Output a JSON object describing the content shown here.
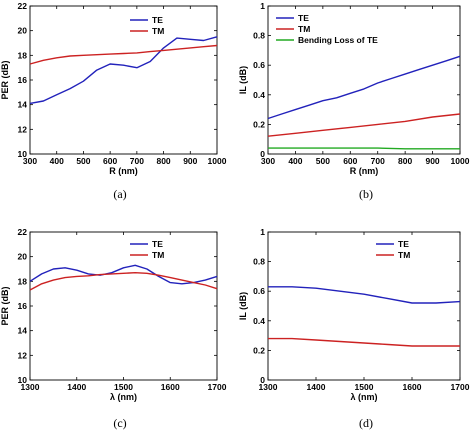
{
  "chart_data": [
    {
      "type": "line",
      "caption": "(a)",
      "xlabel": "R (nm)",
      "ylabel": "PER (dB)",
      "xlim": [
        300,
        1000
      ],
      "ylim": [
        10,
        22
      ],
      "xticks": [
        300,
        400,
        500,
        600,
        700,
        800,
        900,
        1000
      ],
      "yticks": [
        10,
        12,
        14,
        16,
        18,
        20,
        22
      ],
      "legend": "top-right",
      "series": [
        {
          "name": "TE",
          "color": "#2222bb",
          "x": [
            300,
            350,
            400,
            450,
            500,
            550,
            600,
            650,
            700,
            750,
            800,
            850,
            900,
            950,
            1000
          ],
          "y": [
            14.1,
            14.3,
            14.8,
            15.3,
            15.9,
            16.8,
            17.3,
            17.2,
            17.0,
            17.5,
            18.6,
            19.4,
            19.3,
            19.2,
            19.5
          ]
        },
        {
          "name": "TM",
          "color": "#cc2222",
          "x": [
            300,
            350,
            400,
            450,
            500,
            550,
            600,
            650,
            700,
            750,
            800,
            850,
            900,
            950,
            1000
          ],
          "y": [
            17.3,
            17.6,
            17.8,
            17.95,
            18.0,
            18.05,
            18.1,
            18.15,
            18.2,
            18.3,
            18.4,
            18.5,
            18.6,
            18.7,
            18.8
          ]
        }
      ]
    },
    {
      "type": "line",
      "caption": "(b)",
      "xlabel": "R (nm)",
      "ylabel": "IL (dB)",
      "xlim": [
        300,
        1000
      ],
      "ylim": [
        0,
        1
      ],
      "xticks": [
        300,
        400,
        500,
        600,
        700,
        800,
        900,
        1000
      ],
      "yticks": [
        0,
        0.2,
        0.4,
        0.6,
        0.8,
        1
      ],
      "legend": "top-left",
      "series": [
        {
          "name": "TE",
          "color": "#2222bb",
          "x": [
            300,
            350,
            400,
            450,
            500,
            550,
            600,
            650,
            700,
            750,
            800,
            850,
            900,
            950,
            1000
          ],
          "y": [
            0.24,
            0.27,
            0.3,
            0.33,
            0.36,
            0.38,
            0.41,
            0.44,
            0.48,
            0.51,
            0.54,
            0.57,
            0.6,
            0.63,
            0.66
          ]
        },
        {
          "name": "TM",
          "color": "#cc2222",
          "x": [
            300,
            400,
            500,
            600,
            700,
            800,
            900,
            1000
          ],
          "y": [
            0.12,
            0.14,
            0.16,
            0.18,
            0.2,
            0.22,
            0.25,
            0.27
          ]
        },
        {
          "name": "Bending Loss of TE",
          "color": "#22aa22",
          "x": [
            300,
            400,
            500,
            600,
            700,
            800,
            900,
            1000
          ],
          "y": [
            0.04,
            0.04,
            0.04,
            0.04,
            0.04,
            0.035,
            0.035,
            0.035
          ]
        }
      ]
    },
    {
      "type": "line",
      "caption": "(c)",
      "xlabel": "λ (nm)",
      "ylabel": "PER (dB)",
      "xlim": [
        1300,
        1700
      ],
      "ylim": [
        10,
        22
      ],
      "xticks": [
        1300,
        1400,
        1500,
        1600,
        1700
      ],
      "yticks": [
        10,
        12,
        14,
        16,
        18,
        20,
        22
      ],
      "legend": "top-right",
      "series": [
        {
          "name": "TE",
          "color": "#2222bb",
          "x": [
            1300,
            1325,
            1350,
            1375,
            1400,
            1425,
            1450,
            1475,
            1500,
            1525,
            1550,
            1575,
            1600,
            1625,
            1650,
            1675,
            1700
          ],
          "y": [
            18.0,
            18.6,
            19.0,
            19.1,
            18.9,
            18.6,
            18.5,
            18.7,
            19.1,
            19.3,
            19.0,
            18.4,
            17.9,
            17.8,
            17.9,
            18.1,
            18.4
          ]
        },
        {
          "name": "TM",
          "color": "#cc2222",
          "x": [
            1300,
            1325,
            1350,
            1375,
            1400,
            1425,
            1450,
            1475,
            1500,
            1525,
            1550,
            1575,
            1600,
            1625,
            1650,
            1675,
            1700
          ],
          "y": [
            17.3,
            17.8,
            18.1,
            18.3,
            18.4,
            18.45,
            18.55,
            18.6,
            18.65,
            18.7,
            18.65,
            18.5,
            18.3,
            18.1,
            17.9,
            17.7,
            17.4
          ]
        }
      ]
    },
    {
      "type": "line",
      "caption": "(d)",
      "xlabel": "λ (nm)",
      "ylabel": "IL (dB)",
      "xlim": [
        1300,
        1700
      ],
      "ylim": [
        0,
        1
      ],
      "xticks": [
        1300,
        1400,
        1500,
        1600,
        1700
      ],
      "yticks": [
        0,
        0.2,
        0.4,
        0.6,
        0.8,
        1
      ],
      "legend": "top-right",
      "series": [
        {
          "name": "TE",
          "color": "#2222bb",
          "x": [
            1300,
            1350,
            1400,
            1450,
            1500,
            1550,
            1600,
            1650,
            1700
          ],
          "y": [
            0.63,
            0.63,
            0.62,
            0.6,
            0.58,
            0.55,
            0.52,
            0.52,
            0.53
          ]
        },
        {
          "name": "TM",
          "color": "#cc2222",
          "x": [
            1300,
            1350,
            1400,
            1450,
            1500,
            1550,
            1600,
            1650,
            1700
          ],
          "y": [
            0.28,
            0.28,
            0.27,
            0.26,
            0.25,
            0.24,
            0.23,
            0.23,
            0.23
          ]
        }
      ]
    }
  ]
}
